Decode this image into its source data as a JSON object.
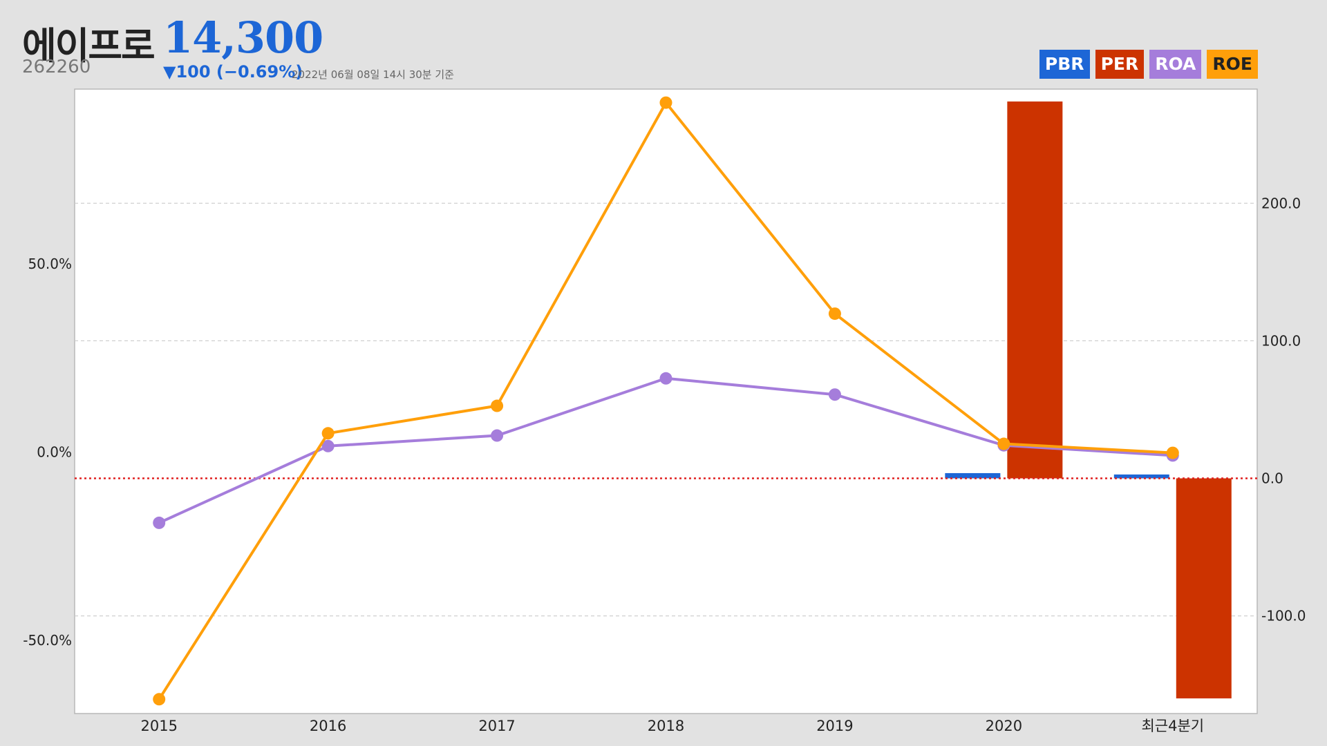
{
  "header": {
    "company_name": "에이프로",
    "ticker": "262260",
    "price": "14,300",
    "change": "▼100 (−0.69%)",
    "as_of": "2022년 06월 08일 14시 30분 기준"
  },
  "legend": {
    "items": [
      {
        "label": "PBR",
        "color": "#1d66d6"
      },
      {
        "label": "PER",
        "color": "#cc3300"
      },
      {
        "label": "ROA",
        "color": "#a57ddb"
      },
      {
        "label": "ROE",
        "color": "#ff9f0a"
      }
    ]
  },
  "chart_data": {
    "type": "combo",
    "categories": [
      "2015",
      "2016",
      "2017",
      "2018",
      "2019",
      "2020",
      "최근4분기"
    ],
    "left_axis": {
      "unit": "%",
      "ticks": [
        "50.0%",
        "0.0%",
        "-50.0%"
      ],
      "tick_values": [
        50,
        0,
        -50
      ],
      "range": [
        -69.5,
        96.5
      ]
    },
    "right_axis": {
      "ticks": [
        "200.0",
        "100.0",
        "0.0",
        "-100.0"
      ],
      "tick_values": [
        200,
        100,
        0,
        -100
      ],
      "range": [
        -171,
        283
      ]
    },
    "grid": "horizontal dashed",
    "zero_line": {
      "axis": "right",
      "value": 0,
      "color": "#e02020",
      "style": "dotted"
    },
    "series": [
      {
        "name": "PBR",
        "type": "bar",
        "axis": "right",
        "color": "#1d66d6",
        "values": [
          null,
          null,
          null,
          null,
          null,
          3.8,
          2.8
        ]
      },
      {
        "name": "PER",
        "type": "bar",
        "axis": "right",
        "color": "#cc3300",
        "values": [
          null,
          null,
          null,
          null,
          null,
          274,
          -160
        ]
      },
      {
        "name": "ROA",
        "type": "line",
        "axis": "left",
        "color": "#a57ddb",
        "values": [
          -18.8,
          1.6,
          4.4,
          19.6,
          15.3,
          1.8,
          -0.9
        ]
      },
      {
        "name": "ROE",
        "type": "line",
        "axis": "left",
        "color": "#ff9f0a",
        "values": [
          -65.7,
          5.0,
          12.3,
          92.9,
          36.8,
          2.2,
          -0.2
        ]
      }
    ]
  }
}
